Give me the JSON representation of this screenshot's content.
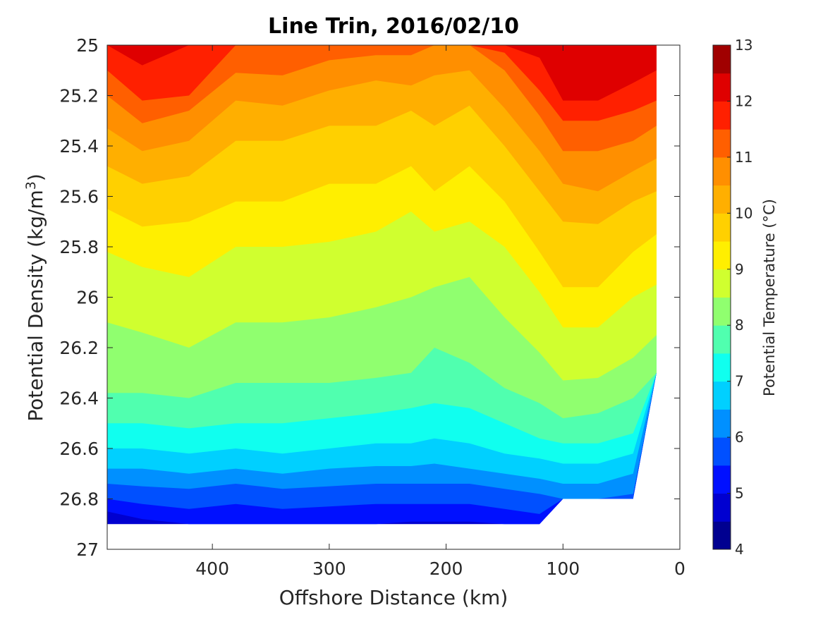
{
  "chart_data": {
    "type": "contour",
    "title": "Line Trin, 2016/02/10",
    "xlabel": "Offshore Distance (km)",
    "ylabel_prefix": "Potential Density (kg/m",
    "ylabel_sup": "3",
    "ylabel_suffix": ")",
    "xlim": [
      490,
      0
    ],
    "ylim": [
      25,
      27
    ],
    "y_reversed": true,
    "x_ticks": [
      {
        "value": 400,
        "label": "400"
      },
      {
        "value": 300,
        "label": "300"
      },
      {
        "value": 200,
        "label": "200"
      },
      {
        "value": 100,
        "label": "100"
      },
      {
        "value": 0,
        "label": "0"
      }
    ],
    "y_ticks": [
      {
        "value": 25,
        "label": "25"
      },
      {
        "value": 25.2,
        "label": "25.2"
      },
      {
        "value": 25.4,
        "label": "25.4"
      },
      {
        "value": 25.6,
        "label": "25.6"
      },
      {
        "value": 25.8,
        "label": "25.8"
      },
      {
        "value": 26,
        "label": "26"
      },
      {
        "value": 26.2,
        "label": "26.2"
      },
      {
        "value": 26.4,
        "label": "26.4"
      },
      {
        "value": 26.6,
        "label": "26.6"
      },
      {
        "value": 26.8,
        "label": "26.8"
      },
      {
        "value": 27,
        "label": "27"
      }
    ],
    "colorbar": {
      "label": "Potential Temperature (°C)",
      "range": [
        4,
        13
      ],
      "step": 0.5,
      "tick_labels": [
        "4",
        "5",
        "6",
        "7",
        "8",
        "9",
        "10",
        "11",
        "12",
        "13"
      ],
      "colors": [
        "#000090",
        "#0000D0",
        "#0010FF",
        "#0050FF",
        "#0090FF",
        "#00D0FF",
        "#10FFEF",
        "#50FFAF",
        "#90FF6F",
        "#D0FF2F",
        "#FFEF00",
        "#FFD000",
        "#FFAF00",
        "#FF8F00",
        "#FF5F00",
        "#FF2000",
        "#DF0000",
        "#A00000"
      ]
    },
    "section": {
      "x": [
        490,
        460,
        420,
        380,
        340,
        300,
        260,
        230,
        210,
        180,
        150,
        120,
        100,
        70,
        40,
        20
      ],
      "bottom_density": [
        26.9,
        26.9,
        26.9,
        26.9,
        26.9,
        26.9,
        26.9,
        26.9,
        26.9,
        26.9,
        26.9,
        26.9,
        26.8,
        26.8,
        26.8,
        26.3
      ],
      "isotherms": [
        {
          "t": 12.0,
          "density": [
            25.0,
            25.08,
            25.0,
            25.0,
            25.0,
            25.0,
            25.0,
            25.0,
            25.0,
            25.0,
            25.0,
            25.05,
            25.22,
            25.22,
            25.15,
            25.1
          ]
        },
        {
          "t": 11.5,
          "density": [
            25.1,
            25.22,
            25.2,
            25.0,
            25.0,
            25.0,
            25.0,
            25.0,
            25.0,
            25.0,
            25.03,
            25.18,
            25.3,
            25.3,
            25.26,
            25.22
          ]
        },
        {
          "t": 11.0,
          "density": [
            25.2,
            25.31,
            25.26,
            25.11,
            25.12,
            25.06,
            25.04,
            25.04,
            25.0,
            25.0,
            25.1,
            25.28,
            25.42,
            25.42,
            25.38,
            25.32
          ]
        },
        {
          "t": 10.5,
          "density": [
            25.33,
            25.42,
            25.38,
            25.22,
            25.24,
            25.18,
            25.14,
            25.16,
            25.12,
            25.1,
            25.25,
            25.42,
            25.55,
            25.58,
            25.5,
            25.45
          ]
        },
        {
          "t": 10.0,
          "density": [
            25.48,
            25.55,
            25.52,
            25.38,
            25.38,
            25.32,
            25.32,
            25.26,
            25.32,
            25.24,
            25.4,
            25.58,
            25.7,
            25.71,
            25.62,
            25.58
          ]
        },
        {
          "t": 9.5,
          "density": [
            25.65,
            25.72,
            25.7,
            25.62,
            25.62,
            25.55,
            25.55,
            25.48,
            25.58,
            25.48,
            25.62,
            25.82,
            25.96,
            25.96,
            25.82,
            25.75
          ]
        },
        {
          "t": 9.0,
          "density": [
            25.82,
            25.88,
            25.92,
            25.8,
            25.8,
            25.78,
            25.74,
            25.66,
            25.74,
            25.7,
            25.8,
            25.98,
            26.12,
            26.12,
            26.0,
            25.95
          ]
        },
        {
          "t": 8.5,
          "density": [
            26.1,
            26.14,
            26.2,
            26.1,
            26.1,
            26.08,
            26.04,
            26.0,
            25.96,
            25.92,
            26.08,
            26.22,
            26.33,
            26.32,
            26.24,
            26.15
          ]
        },
        {
          "t": 8.0,
          "density": [
            26.38,
            26.38,
            26.4,
            26.34,
            26.34,
            26.34,
            26.32,
            26.3,
            26.2,
            26.26,
            26.36,
            26.42,
            26.48,
            26.46,
            26.4,
            26.36
          ]
        },
        {
          "t": 7.5,
          "density": [
            26.5,
            26.5,
            26.52,
            26.5,
            26.5,
            26.48,
            26.46,
            26.44,
            26.42,
            26.44,
            26.5,
            26.56,
            26.58,
            26.58,
            26.54,
            26.52
          ]
        },
        {
          "t": 7.0,
          "density": [
            26.6,
            26.6,
            26.62,
            26.6,
            26.62,
            26.6,
            26.58,
            26.58,
            26.56,
            26.58,
            26.62,
            26.64,
            26.66,
            26.66,
            26.62,
            26.6
          ]
        },
        {
          "t": 6.5,
          "density": [
            26.68,
            26.68,
            26.7,
            26.68,
            26.7,
            26.68,
            26.67,
            26.67,
            26.66,
            26.68,
            26.7,
            26.72,
            26.74,
            26.74,
            26.7,
            26.68
          ]
        },
        {
          "t": 6.0,
          "density": [
            26.74,
            26.75,
            26.76,
            26.74,
            26.76,
            26.75,
            26.74,
            26.74,
            26.74,
            26.74,
            26.76,
            26.78,
            26.8,
            26.8,
            26.78,
            26.76
          ]
        },
        {
          "t": 5.5,
          "density": [
            26.8,
            26.82,
            26.84,
            26.82,
            26.84,
            26.83,
            26.82,
            26.82,
            26.82,
            26.82,
            26.84,
            26.86,
            26.9,
            26.9,
            26.9,
            26.9
          ]
        },
        {
          "t": 5.0,
          "density": [
            26.85,
            26.88,
            26.9,
            26.9,
            26.9,
            26.9,
            26.9,
            26.89,
            26.89,
            26.89,
            26.9,
            26.9,
            26.9,
            26.9,
            26.9,
            26.9
          ]
        }
      ]
    }
  }
}
